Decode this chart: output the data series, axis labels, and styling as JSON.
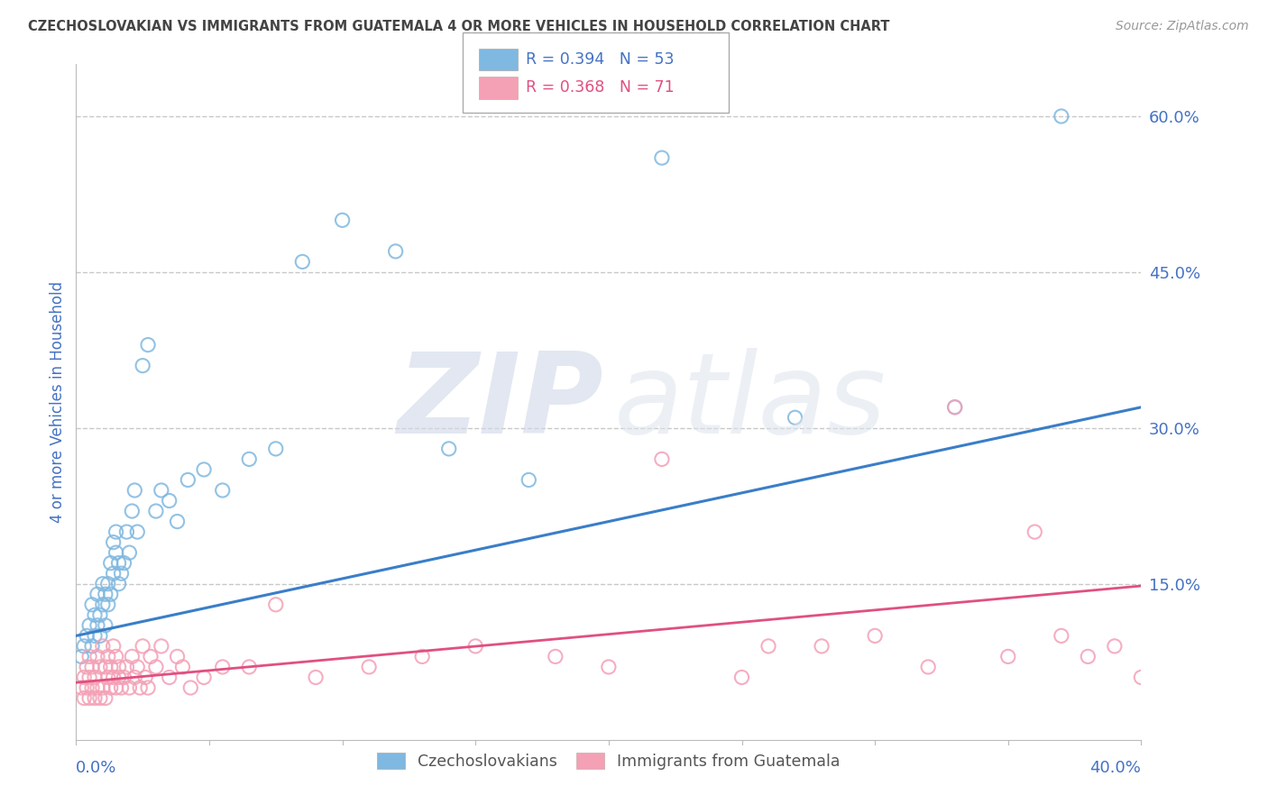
{
  "title": "CZECHOSLOVAKIAN VS IMMIGRANTS FROM GUATEMALA 4 OR MORE VEHICLES IN HOUSEHOLD CORRELATION CHART",
  "source": "Source: ZipAtlas.com",
  "ylabel": "4 or more Vehicles in Household",
  "xmin": 0.0,
  "xmax": 0.4,
  "ymin": 0.0,
  "ymax": 0.65,
  "blue_R": 0.394,
  "blue_N": 53,
  "pink_R": 0.368,
  "pink_N": 71,
  "blue_color": "#7fb8e0",
  "pink_color": "#f4a0b5",
  "blue_line_color": "#3a7ec8",
  "pink_line_color": "#e05080",
  "legend_label_blue": "Czechoslovakians",
  "legend_label_pink": "Immigrants from Guatemala",
  "blue_scatter_x": [
    0.002,
    0.003,
    0.004,
    0.005,
    0.006,
    0.006,
    0.007,
    0.007,
    0.008,
    0.008,
    0.009,
    0.009,
    0.01,
    0.01,
    0.011,
    0.011,
    0.012,
    0.012,
    0.013,
    0.013,
    0.014,
    0.014,
    0.015,
    0.015,
    0.016,
    0.016,
    0.017,
    0.018,
    0.019,
    0.02,
    0.021,
    0.022,
    0.023,
    0.025,
    0.027,
    0.03,
    0.032,
    0.035,
    0.038,
    0.042,
    0.048,
    0.055,
    0.065,
    0.075,
    0.085,
    0.1,
    0.12,
    0.14,
    0.17,
    0.22,
    0.27,
    0.33,
    0.37
  ],
  "blue_scatter_y": [
    0.08,
    0.09,
    0.1,
    0.11,
    0.09,
    0.13,
    0.1,
    0.12,
    0.11,
    0.14,
    0.12,
    0.1,
    0.13,
    0.15,
    0.11,
    0.14,
    0.15,
    0.13,
    0.17,
    0.14,
    0.16,
    0.19,
    0.18,
    0.2,
    0.17,
    0.15,
    0.16,
    0.17,
    0.2,
    0.18,
    0.22,
    0.24,
    0.2,
    0.36,
    0.38,
    0.22,
    0.24,
    0.23,
    0.21,
    0.25,
    0.26,
    0.24,
    0.27,
    0.28,
    0.46,
    0.5,
    0.47,
    0.28,
    0.25,
    0.56,
    0.31,
    0.32,
    0.6
  ],
  "pink_scatter_x": [
    0.002,
    0.003,
    0.003,
    0.004,
    0.004,
    0.005,
    0.005,
    0.005,
    0.006,
    0.006,
    0.007,
    0.007,
    0.008,
    0.008,
    0.009,
    0.009,
    0.01,
    0.01,
    0.011,
    0.011,
    0.012,
    0.012,
    0.013,
    0.013,
    0.014,
    0.014,
    0.015,
    0.015,
    0.016,
    0.016,
    0.017,
    0.018,
    0.019,
    0.02,
    0.021,
    0.022,
    0.023,
    0.024,
    0.025,
    0.026,
    0.027,
    0.028,
    0.03,
    0.032,
    0.035,
    0.038,
    0.04,
    0.043,
    0.048,
    0.055,
    0.065,
    0.075,
    0.09,
    0.11,
    0.13,
    0.15,
    0.18,
    0.22,
    0.26,
    0.3,
    0.33,
    0.36,
    0.38,
    0.39,
    0.4,
    0.37,
    0.35,
    0.32,
    0.28,
    0.25,
    0.2
  ],
  "pink_scatter_y": [
    0.05,
    0.04,
    0.06,
    0.05,
    0.07,
    0.04,
    0.06,
    0.08,
    0.05,
    0.07,
    0.04,
    0.06,
    0.05,
    0.08,
    0.04,
    0.07,
    0.05,
    0.09,
    0.04,
    0.07,
    0.06,
    0.08,
    0.05,
    0.07,
    0.06,
    0.09,
    0.05,
    0.08,
    0.06,
    0.07,
    0.05,
    0.06,
    0.07,
    0.05,
    0.08,
    0.06,
    0.07,
    0.05,
    0.09,
    0.06,
    0.05,
    0.08,
    0.07,
    0.09,
    0.06,
    0.08,
    0.07,
    0.05,
    0.06,
    0.07,
    0.07,
    0.13,
    0.06,
    0.07,
    0.08,
    0.09,
    0.08,
    0.27,
    0.09,
    0.1,
    0.32,
    0.2,
    0.08,
    0.09,
    0.06,
    0.1,
    0.08,
    0.07,
    0.09,
    0.06,
    0.07
  ],
  "blue_line_y_start": 0.1,
  "blue_line_y_end": 0.32,
  "pink_line_y_start": 0.055,
  "pink_line_y_end": 0.148,
  "bg_color": "#ffffff",
  "grid_color": "#c8c8c8",
  "title_color": "#444444",
  "axis_label_color": "#4472c4",
  "pink_legend_color": "#e05080"
}
